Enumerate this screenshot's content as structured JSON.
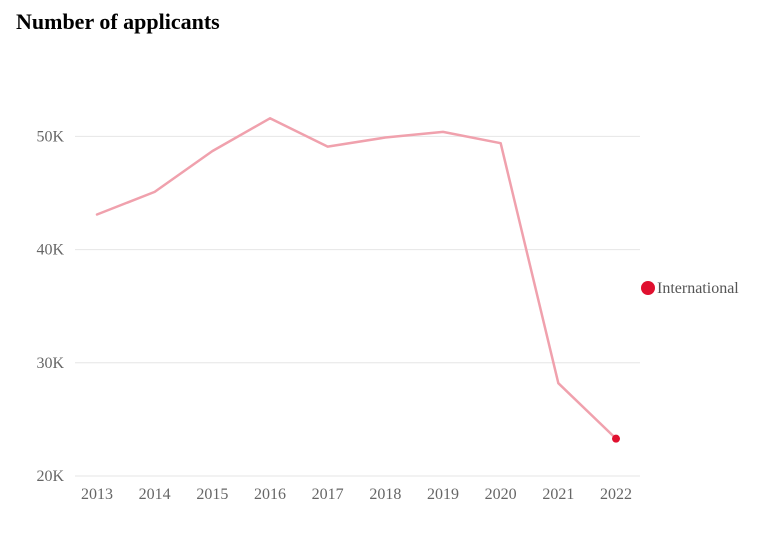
{
  "chart_data": {
    "type": "line",
    "title": "Number of applicants",
    "xlabel": "",
    "ylabel": "",
    "x": [
      "2013",
      "2014",
      "2015",
      "2016",
      "2017",
      "2018",
      "2019",
      "2020",
      "2021",
      "2022"
    ],
    "ylim": [
      20000,
      55000
    ],
    "y_ticks": [
      20000,
      30000,
      40000,
      50000
    ],
    "y_tick_labels": [
      "20K",
      "30K",
      "40K",
      "50K"
    ],
    "grid": true,
    "legend_position": "right",
    "series": [
      {
        "name": "International",
        "values": [
          43100,
          45100,
          48700,
          51600,
          49100,
          49900,
          50400,
          49400,
          28200,
          23300
        ],
        "line_color": "#f0a1ad",
        "marker_color": "#e0102f"
      }
    ]
  }
}
